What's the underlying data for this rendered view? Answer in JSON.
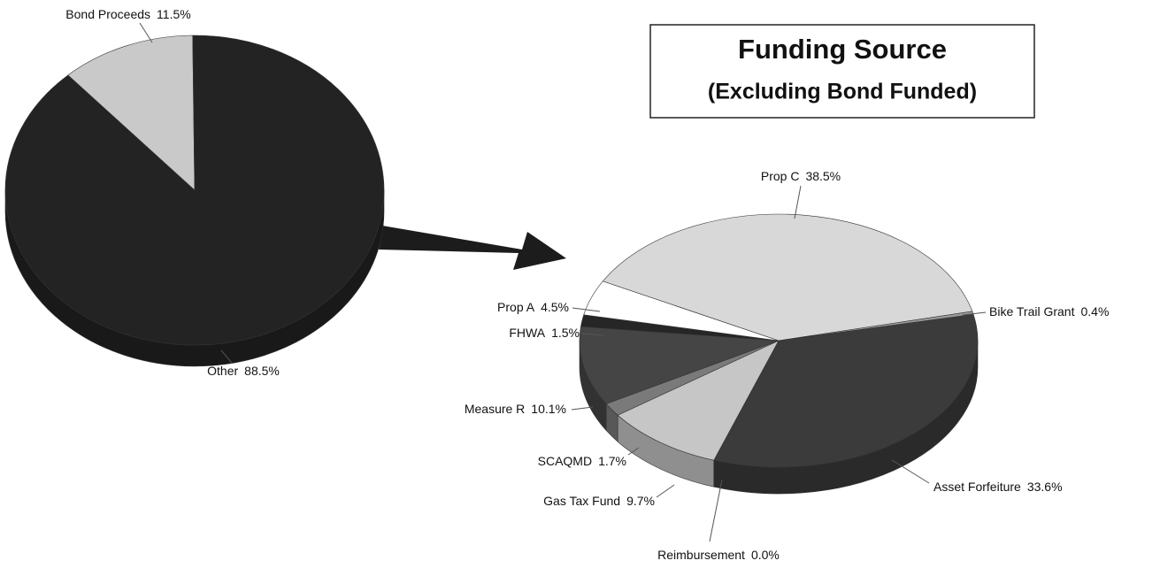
{
  "chart_data": [
    {
      "type": "pie",
      "categories": [
        "Bond Proceeds",
        "Other"
      ],
      "values": [
        11.5,
        88.5
      ],
      "value_labels": [
        "11.5%",
        "88.5%"
      ],
      "colors": [
        "#c9c9c9",
        "#232323"
      ]
    },
    {
      "type": "pie",
      "title": "Funding Source",
      "subtitle": "(Excluding Bond Funded)",
      "categories": [
        "Prop C",
        "Bike Trail Grant",
        "Asset Forfeiture",
        "Reimbursement",
        "Gas Tax Fund",
        "SCAQMD",
        "Measure R",
        "FHWA",
        "Prop A"
      ],
      "values": [
        38.5,
        0.4,
        33.6,
        0.0,
        9.7,
        1.7,
        10.1,
        1.5,
        4.5
      ],
      "value_labels": [
        "38.5%",
        "0.4%",
        "33.6%",
        "0.0%",
        "9.7%",
        "1.7%",
        "10.1%",
        "1.5%",
        "4.5%"
      ],
      "colors": [
        "#d8d8d8",
        "#9a9a9a",
        "#3b3b3b",
        "#555555",
        "#c6c6c6",
        "#7a7a7a",
        "#454545",
        "#262626",
        "#ffffff"
      ]
    }
  ]
}
